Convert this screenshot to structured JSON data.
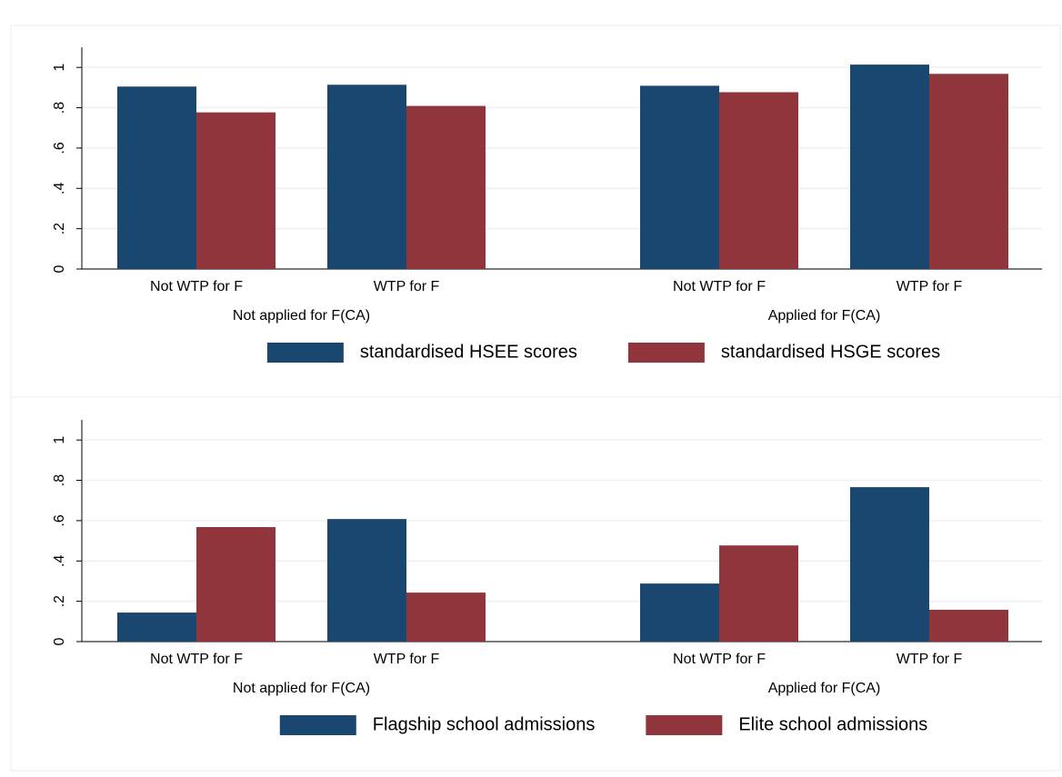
{
  "chart_data": [
    {
      "type": "bar",
      "categories": [
        "Not WTP for F",
        "WTP for F",
        "Not WTP for F",
        "WTP for F"
      ],
      "groups": [
        "Not applied for F(CA)",
        "Applied for F(CA)"
      ],
      "series": [
        {
          "name": "standardised HSEE scores",
          "color": "#1a476f",
          "values": [
            0.905,
            0.914,
            0.909,
            1.014
          ]
        },
        {
          "name": "standardised HSGE scores",
          "color": "#90353b",
          "values": [
            0.777,
            0.809,
            0.877,
            0.968
          ]
        }
      ],
      "ylim": [
        0,
        1.1
      ],
      "yticks": [
        0,
        {
          "value": 0.2,
          "label": ".2"
        },
        {
          "value": 0.4,
          "label": ".4"
        },
        {
          "value": 0.6,
          "label": ".6"
        },
        {
          "value": 0.8,
          "label": ".8"
        },
        1
      ],
      "grid": true,
      "legend": "bottom"
    },
    {
      "type": "bar",
      "categories": [
        "Not WTP for F",
        "WTP for F",
        "Not WTP for F",
        "WTP for F"
      ],
      "groups": [
        "Not applied for F(CA)",
        "Applied for F(CA)"
      ],
      "series": [
        {
          "name": "Flagship school admissions",
          "color": "#1a476f",
          "values": [
            0.144,
            0.608,
            0.288,
            0.766
          ]
        },
        {
          "name": "Elite school admissions",
          "color": "#90353b",
          "values": [
            0.568,
            0.243,
            0.477,
            0.158
          ]
        }
      ],
      "ylim": [
        0,
        1.1
      ],
      "yticks": [
        0,
        {
          "value": 0.2,
          "label": ".2"
        },
        {
          "value": 0.4,
          "label": ".4"
        },
        {
          "value": 0.6,
          "label": ".6"
        },
        {
          "value": 0.8,
          "label": ".8"
        },
        1
      ],
      "grid": true,
      "legend": "bottom"
    }
  ]
}
